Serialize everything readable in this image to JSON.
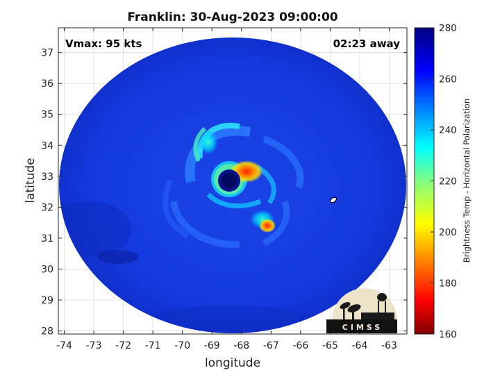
{
  "chart_data": {
    "type": "heatmap",
    "title": "Franklin: 30-Aug-2023 09:00:00",
    "xlabel": "longitude",
    "ylabel": "latitude",
    "xlim": [
      -74.2,
      -62.4
    ],
    "ylim": [
      27.9,
      37.8
    ],
    "x_ticks": [
      -74,
      -73,
      -72,
      -71,
      -70,
      -69,
      -68,
      -67,
      -66,
      -65,
      -64,
      -63
    ],
    "y_ticks": [
      28,
      29,
      30,
      31,
      32,
      33,
      34,
      35,
      36,
      37
    ],
    "grid": true,
    "colorbar": {
      "label": "Brightness Temp - Horizontal Polarization",
      "range": [
        160,
        280
      ],
      "ticks": [
        280,
        260,
        240,
        220,
        200,
        180,
        160
      ],
      "colormap": "jet",
      "colors": [
        "#800000",
        "#ff0000",
        "#ff8000",
        "#ffff00",
        "#80ff80",
        "#00ffff",
        "#0080ff",
        "#0000ff",
        "#000080"
      ]
    },
    "annotations": {
      "vmax": "Vmax: 95 kts",
      "time_away": "02:23 away"
    },
    "storm": {
      "name": "Franklin",
      "eye_lon": -68.3,
      "eye_lat": 32.95,
      "eye_temp": 268,
      "min_temp_near_eye": 185,
      "background_temp": 262
    },
    "logo": "CIMSS"
  }
}
